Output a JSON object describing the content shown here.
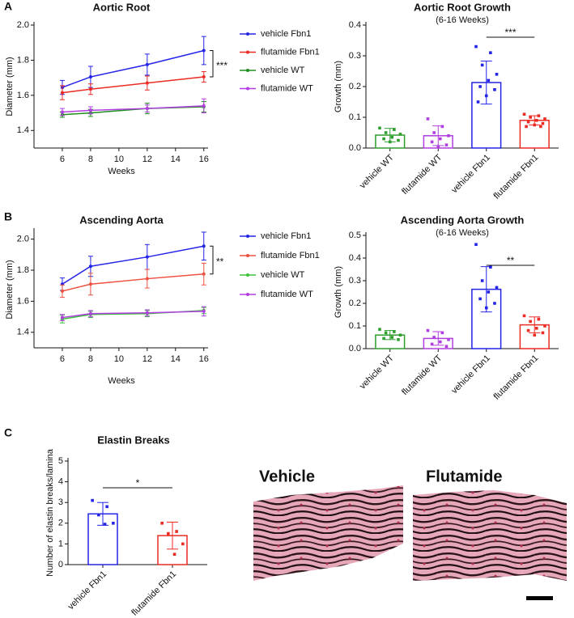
{
  "chart_data": [
    {
      "type": "line",
      "panel": "A",
      "title": "Aortic Root",
      "xlabel": "Weeks",
      "ylabel": "Diameter (mm)",
      "x": [
        6,
        8,
        12,
        16
      ],
      "xlim": [
        4,
        16.3
      ],
      "xticks": [
        6,
        8,
        10,
        12,
        14,
        16
      ],
      "ylim": [
        1.3,
        2.0
      ],
      "yticks": [
        1.4,
        1.6,
        1.8,
        {
          "value": 2.0,
          "label": "2.0"
        }
      ],
      "legend": "right",
      "annotation": "***",
      "series": [
        {
          "name": "vehicle Fbn1",
          "color": "#2424e8",
          "values": [
            1.645,
            1.705,
            1.775,
            1.855
          ],
          "errors": [
            0.04,
            0.06,
            0.06,
            0.08
          ]
        },
        {
          "name": "flutamide Fbn1",
          "color": "#ec2b24",
          "values": [
            1.615,
            1.635,
            1.67,
            1.705
          ],
          "errors": [
            0.04,
            0.03,
            0.04,
            0.03
          ]
        },
        {
          "name": "vehicle WT",
          "color": "#1e8f1e",
          "values": [
            1.49,
            1.5,
            1.525,
            1.535
          ],
          "errors": [
            0.015,
            0.02,
            0.03,
            0.03
          ]
        },
        {
          "name": "flutamide WT",
          "color": "#b03ee0",
          "values": [
            1.505,
            1.515,
            1.525,
            1.54
          ],
          "errors": [
            0.02,
            0.02,
            0.02,
            0.04
          ]
        }
      ]
    },
    {
      "type": "bar",
      "title": "Aortic Root Growth",
      "subtitle": "(6-16 Weeks)",
      "ylabel": "Growth (mm)",
      "categories": [
        "vehicle WT",
        "flutamide WT",
        "vehicle Fbn1",
        "flutamide Fbn1"
      ],
      "values": [
        0.042,
        0.04,
        0.213,
        0.09
      ],
      "errors": [
        0.022,
        0.032,
        0.07,
        0.015
      ],
      "colors": [
        "#2e9e2e",
        "#b03ee0",
        "#2424e8",
        "#ec2b24"
      ],
      "points": [
        [
          0.065,
          0.06,
          0.05,
          0.045,
          0.035,
          0.03,
          0.025,
          0.02
        ],
        [
          0.095,
          0.07,
          0.05,
          0.04,
          0.03,
          0.02,
          0.01,
          0.005
        ],
        [
          0.33,
          0.31,
          0.27,
          0.24,
          0.22,
          0.2,
          0.19,
          0.17,
          0.15
        ],
        [
          0.11,
          0.105,
          0.1,
          0.095,
          0.09,
          0.085,
          0.08,
          0.075,
          0.07,
          0.07
        ]
      ],
      "ylim": [
        0,
        0.4
      ],
      "yticks": [
        {
          "value": 0,
          "label": "0.0"
        },
        0.1,
        0.2,
        0.3,
        0.4
      ],
      "annotation": "***"
    },
    {
      "type": "line",
      "panel": "B",
      "title": "Ascending Aorta",
      "xlabel": "Weeks",
      "ylabel": "Diameter (mm)",
      "x": [
        6,
        8,
        12,
        16
      ],
      "xlim": [
        4,
        16.3
      ],
      "xticks": [
        6,
        8,
        10,
        12,
        14,
        16
      ],
      "ylim": [
        1.3,
        2.05
      ],
      "yticks": [
        1.4,
        1.6,
        1.8,
        {
          "value": 2.0,
          "label": "2.0"
        }
      ],
      "legend": "right",
      "annotation": "**",
      "series": [
        {
          "name": "vehicle Fbn1",
          "color": "#2424e8",
          "values": [
            1.71,
            1.825,
            1.885,
            1.955
          ],
          "errors": [
            0.04,
            0.065,
            0.08,
            0.09
          ]
        },
        {
          "name": "flutamide Fbn1",
          "color": "#ef5040",
          "values": [
            1.665,
            1.71,
            1.745,
            1.775
          ],
          "errors": [
            0.04,
            0.07,
            0.06,
            0.07
          ]
        },
        {
          "name": "vehicle WT",
          "color": "#3cc23c",
          "values": [
            1.485,
            1.515,
            1.52,
            1.54
          ],
          "errors": [
            0.025,
            0.02,
            0.02,
            0.02
          ]
        },
        {
          "name": "flutamide WT",
          "color": "#b03ee0",
          "values": [
            1.495,
            1.52,
            1.525,
            1.535
          ],
          "errors": [
            0.02,
            0.02,
            0.02,
            0.03
          ]
        }
      ]
    },
    {
      "type": "bar",
      "title": "Ascending Aorta Growth",
      "subtitle": "(6-16 Weeks)",
      "ylabel": "Growth (mm)",
      "categories": [
        "vehicle WT",
        "flutamide WT",
        "vehicle Fbn1",
        "flutamide Fbn1"
      ],
      "values": [
        0.06,
        0.045,
        0.262,
        0.105
      ],
      "errors": [
        0.02,
        0.03,
        0.1,
        0.035
      ],
      "colors": [
        "#2e9e2e",
        "#b03ee0",
        "#2424e8",
        "#ec2b24"
      ],
      "points": [
        [
          0.085,
          0.075,
          0.07,
          0.06,
          0.05,
          0.045,
          0.04
        ],
        [
          0.08,
          0.07,
          0.05,
          0.04,
          0.03,
          0.02,
          0.01
        ],
        [
          0.46,
          0.36,
          0.3,
          0.27,
          0.25,
          0.22,
          0.2,
          0.18
        ],
        [
          0.145,
          0.13,
          0.12,
          0.1,
          0.09,
          0.08,
          0.07,
          0.06
        ]
      ],
      "ylim": [
        0,
        0.5
      ],
      "yticks": [
        {
          "value": 0,
          "label": "0.0"
        },
        0.1,
        0.2,
        0.3,
        0.4,
        0.5
      ],
      "annotation": "**"
    },
    {
      "type": "bar",
      "panel": "C",
      "title": "Elastin Breaks",
      "ylabel": "Number of elastin breaks/lamina",
      "categories": [
        "vehicle Fbn1",
        "flutamide Fbn1"
      ],
      "values": [
        2.45,
        1.4
      ],
      "errors": [
        0.55,
        0.65
      ],
      "colors": [
        "#2424e8",
        "#ec2b24"
      ],
      "points": [
        [
          3.1,
          2.8,
          2.4,
          2.0,
          1.95
        ],
        [
          2.0,
          1.6,
          1.5,
          1.0,
          0.5
        ]
      ],
      "ylim": [
        0,
        5
      ],
      "yticks": [
        0,
        1,
        2,
        3,
        4,
        5
      ],
      "annotation": "*"
    }
  ],
  "micrographs": {
    "labels": [
      "Vehicle",
      "Flutamide"
    ]
  }
}
